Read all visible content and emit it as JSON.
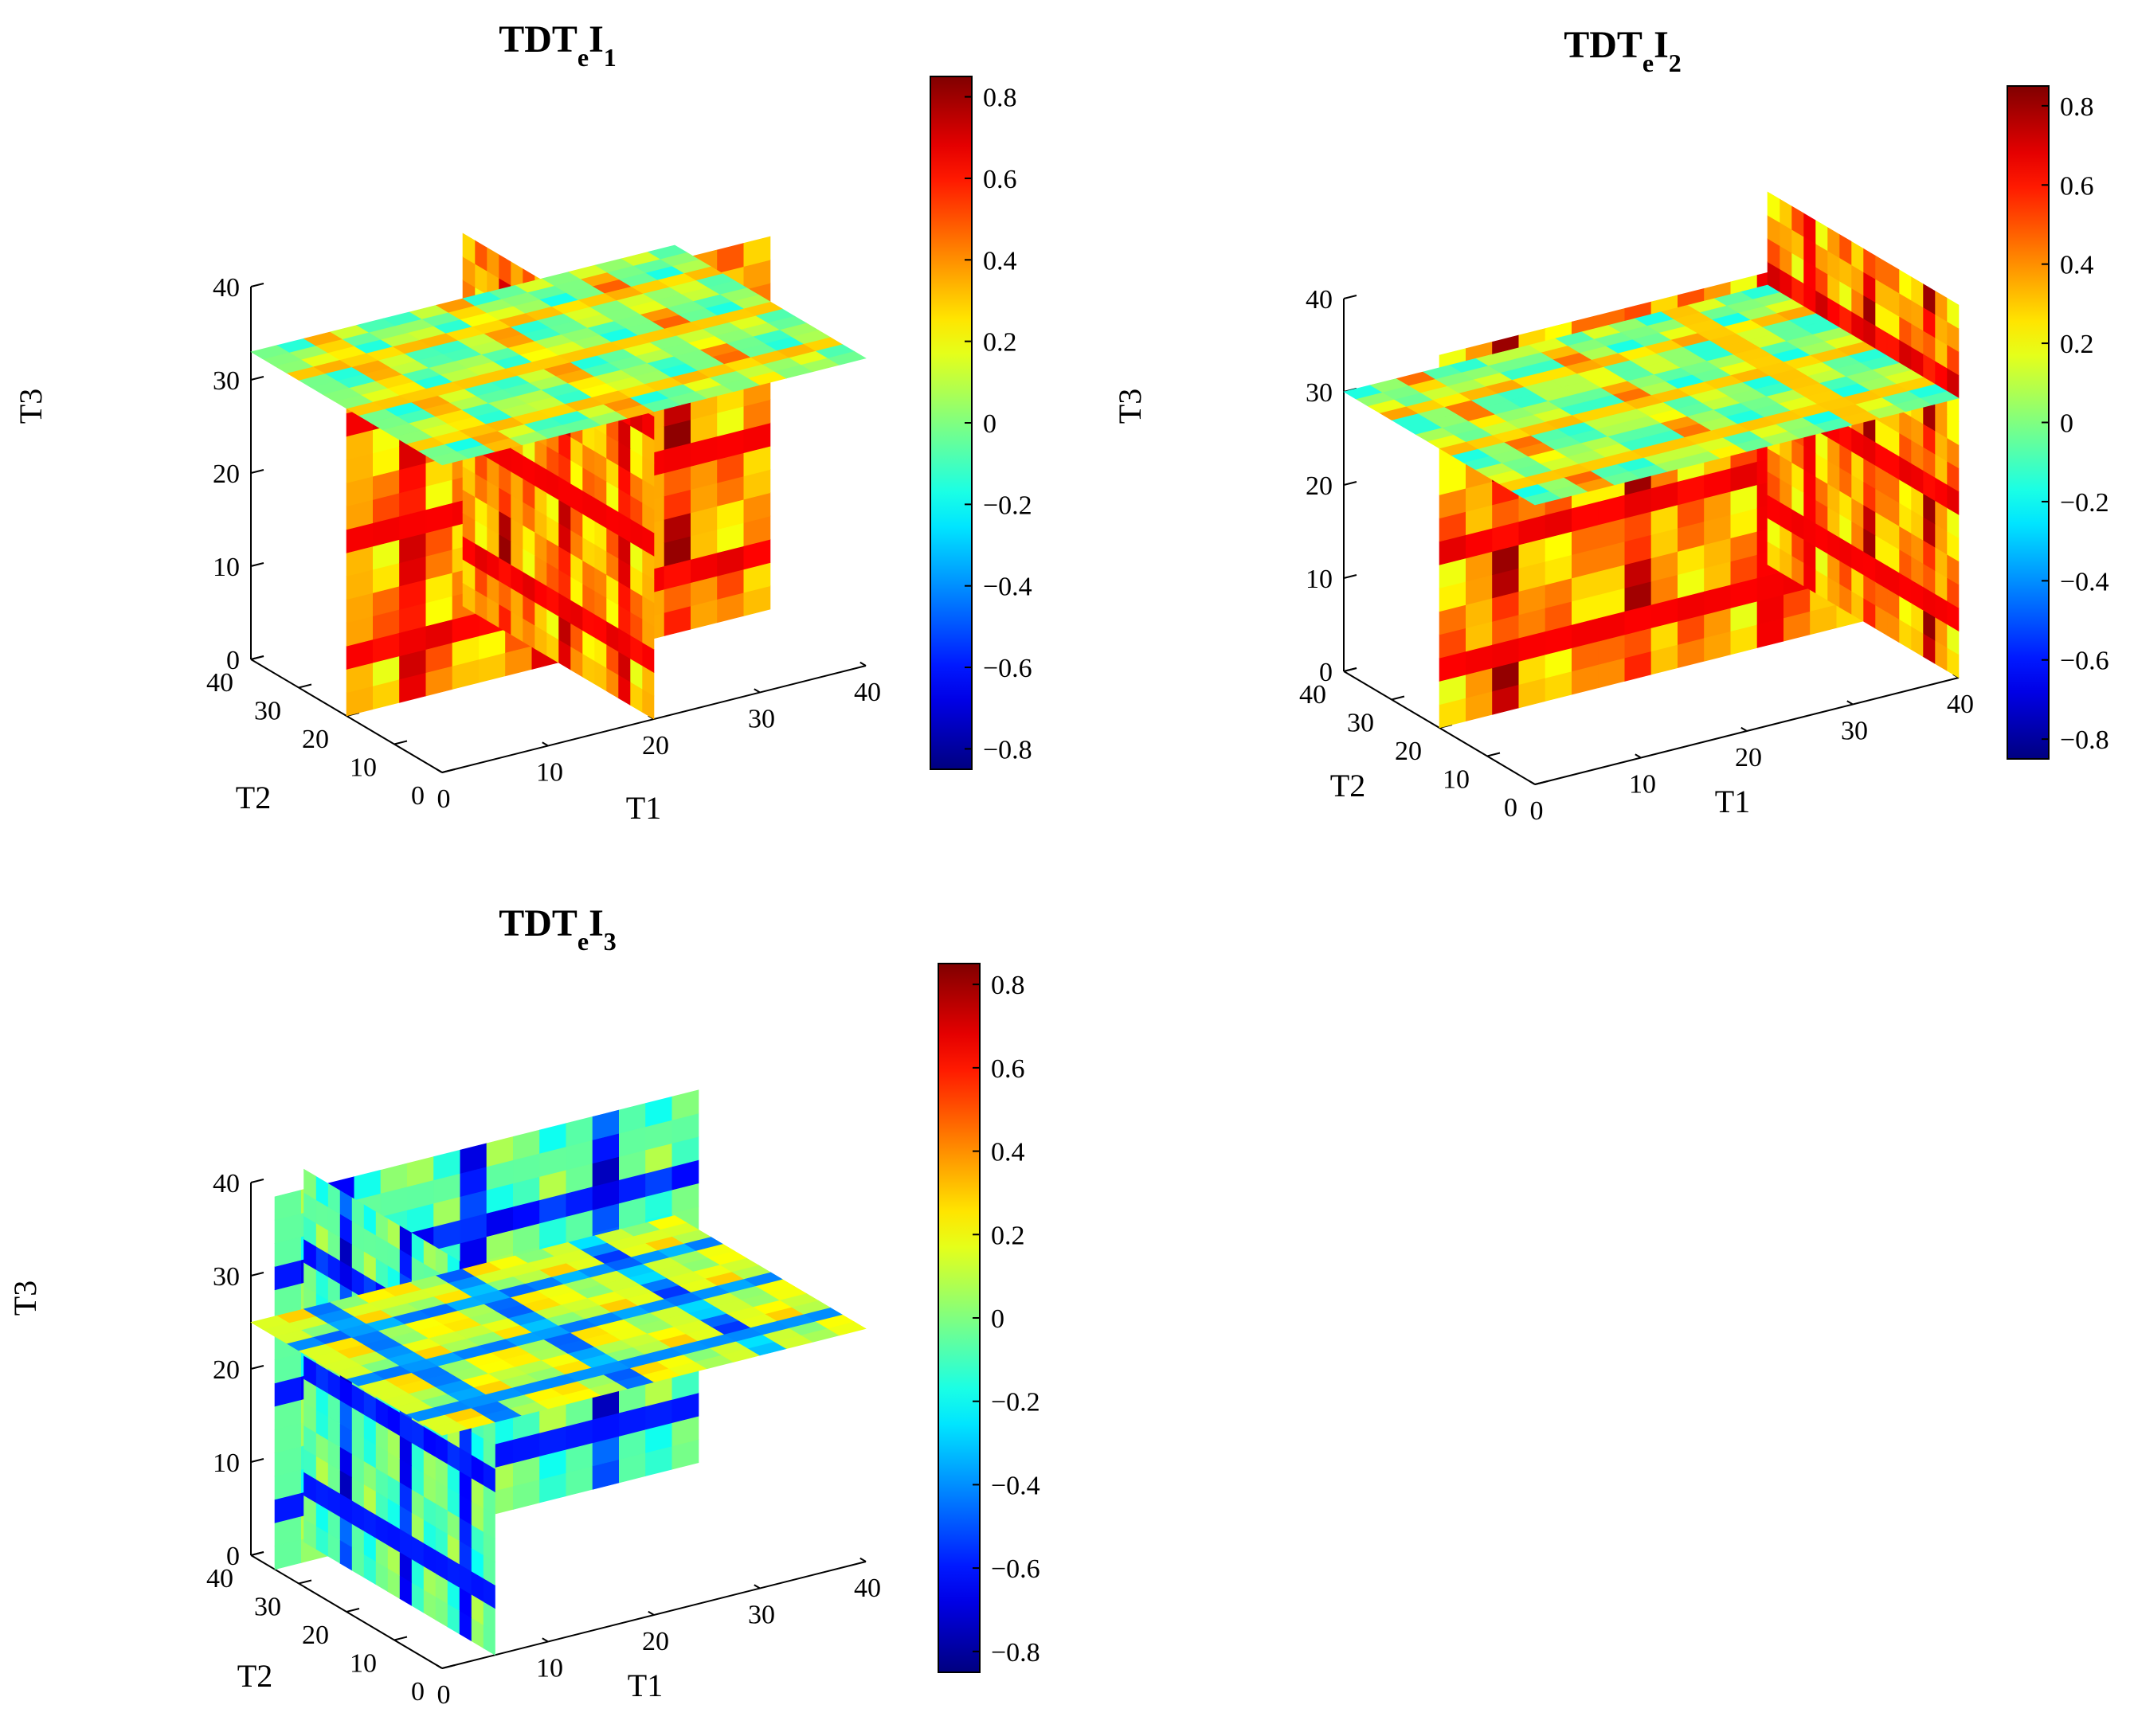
{
  "colormap": "jet",
  "chart_data": [
    {
      "type": "heatmap",
      "title": "TDTeI1",
      "title_parts": {
        "base": "TDT",
        "e_sub": "e",
        "mid": "I",
        "index_sub": "1"
      },
      "xlabel": "T1",
      "ylabel": "T2",
      "zlabel": "T3",
      "xlim": [
        0,
        40
      ],
      "ylim": [
        0,
        40
      ],
      "zlim": [
        0,
        40
      ],
      "xticks": [
        "0",
        "10",
        "20",
        "30",
        "40"
      ],
      "yticks": [
        "0",
        "10",
        "20",
        "30",
        "40"
      ],
      "zticks": [
        "0",
        "10",
        "20",
        "30",
        "40"
      ],
      "colorbar": {
        "range": [
          -0.85,
          0.85
        ],
        "ticks": [
          "−0.8",
          "−0.6",
          "−0.4",
          "−0.2",
          "0",
          "0.2",
          "0.4",
          "0.6",
          "0.8"
        ]
      },
      "slices": {
        "T1": [
          20
        ],
        "T2": [
          20
        ],
        "T3": [
          33
        ]
      },
      "dominant": "positive"
    },
    {
      "type": "heatmap",
      "title": "TDTeI2",
      "title_parts": {
        "base": "TDT",
        "e_sub": "e",
        "mid": "I",
        "index_sub": "2"
      },
      "xlabel": "T1",
      "ylabel": "T2",
      "zlabel": "T3",
      "xlim": [
        0,
        40
      ],
      "ylim": [
        0,
        40
      ],
      "zlim": [
        0,
        40
      ],
      "xticks": [
        "0",
        "10",
        "20",
        "30",
        "40"
      ],
      "yticks": [
        "0",
        "10",
        "20",
        "30",
        "40"
      ],
      "zticks": [
        "0",
        "10",
        "20",
        "30",
        "40"
      ],
      "colorbar": {
        "range": [
          -0.85,
          0.85
        ],
        "ticks": [
          "−0.8",
          "−0.6",
          "−0.4",
          "−0.2",
          "0",
          "0.2",
          "0.4",
          "0.6",
          "0.8"
        ]
      },
      "slices": {
        "T1": [
          40
        ],
        "T2": [
          20
        ],
        "T3": [
          30
        ]
      },
      "dominant": "positive"
    },
    {
      "type": "heatmap",
      "title": "TDTeI3",
      "title_parts": {
        "base": "TDT",
        "e_sub": "e",
        "mid": "I",
        "index_sub": "3"
      },
      "xlabel": "T1",
      "ylabel": "T2",
      "zlabel": "T3",
      "xlim": [
        0,
        40
      ],
      "ylim": [
        0,
        40
      ],
      "zlim": [
        0,
        40
      ],
      "xticks": [
        "0",
        "10",
        "20",
        "30",
        "40"
      ],
      "yticks": [
        "0",
        "10",
        "20",
        "30",
        "40"
      ],
      "zticks": [
        "0",
        "10",
        "20",
        "30",
        "40"
      ],
      "colorbar": {
        "range": [
          -0.85,
          0.85
        ],
        "ticks": [
          "−0.8",
          "−0.6",
          "−0.4",
          "−0.2",
          "0",
          "0.2",
          "0.4",
          "0.6",
          "0.8"
        ]
      },
      "slices": {
        "T1": [
          5
        ],
        "T2": [
          35
        ],
        "T3": [
          25
        ]
      },
      "dominant": "negative"
    }
  ]
}
